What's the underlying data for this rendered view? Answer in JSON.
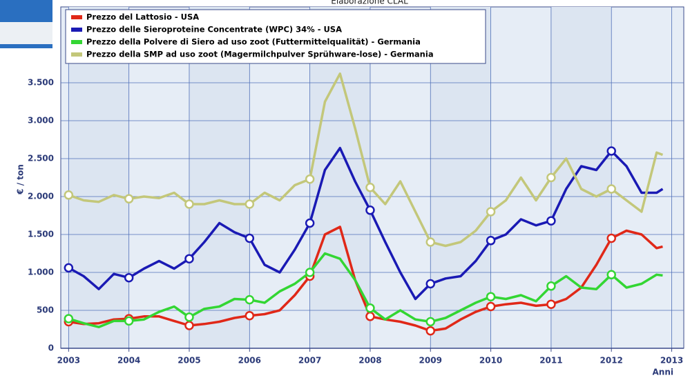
{
  "chart_data": {
    "type": "line",
    "title": "Elaborazione CLAL",
    "ylabel": "€ / ton",
    "xlabel": "Anni",
    "x": [
      2003,
      2003.25,
      2003.5,
      2003.75,
      2004,
      2004.25,
      2004.5,
      2004.75,
      2005,
      2005.25,
      2005.5,
      2005.75,
      2006,
      2006.25,
      2006.5,
      2006.75,
      2007,
      2007.25,
      2007.5,
      2007.75,
      2008,
      2008.25,
      2008.5,
      2008.75,
      2009,
      2009.25,
      2009.5,
      2009.75,
      2010,
      2010.25,
      2010.5,
      2010.75,
      2011,
      2011.25,
      2011.5,
      2011.75,
      2012,
      2012.25,
      2012.5,
      2012.75,
      2012.85
    ],
    "series": [
      {
        "name": "Prezzo del Lattosio - USA",
        "color": "#e02818",
        "values": [
          350,
          320,
          330,
          380,
          390,
          420,
          420,
          360,
          300,
          320,
          350,
          400,
          430,
          450,
          500,
          700,
          950,
          1500,
          1600,
          900,
          420,
          380,
          350,
          300,
          230,
          260,
          380,
          480,
          550,
          580,
          600,
          560,
          580,
          650,
          800,
          1100,
          1450,
          1550,
          1500,
          1320,
          1340
        ]
      },
      {
        "name": "Prezzo delle Sieroproteine Concentrate (WPC) 34% - USA",
        "color": "#1a1ab4",
        "values": [
          1060,
          950,
          780,
          980,
          930,
          1050,
          1150,
          1050,
          1180,
          1400,
          1650,
          1530,
          1450,
          1100,
          1000,
          1300,
          1650,
          2350,
          2640,
          2200,
          1820,
          1400,
          1000,
          650,
          850,
          920,
          950,
          1150,
          1420,
          1500,
          1700,
          1620,
          1680,
          2100,
          2400,
          2350,
          2600,
          2400,
          2050,
          2050,
          2100
        ]
      },
      {
        "name": "Prezzo della Polvere di Siero ad uso zoot (Futtermittelqualität) - Germania",
        "color": "#33d633",
        "values": [
          390,
          330,
          280,
          360,
          360,
          380,
          480,
          550,
          410,
          520,
          550,
          650,
          640,
          600,
          750,
          850,
          1000,
          1250,
          1180,
          900,
          530,
          380,
          500,
          380,
          350,
          400,
          500,
          600,
          680,
          650,
          700,
          620,
          820,
          950,
          800,
          780,
          970,
          800,
          850,
          970,
          960
        ]
      },
      {
        "name": "Prezzo della SMP ad uso zoot (Magermilchpulver Sprühware-lose) - Germania",
        "color": "#c3c77a",
        "values": [
          2020,
          1950,
          1930,
          2020,
          1970,
          2000,
          1980,
          2050,
          1900,
          1900,
          1950,
          1900,
          1900,
          2050,
          1950,
          2150,
          2230,
          3250,
          3620,
          2900,
          2120,
          1900,
          2200,
          1800,
          1400,
          1350,
          1400,
          1550,
          1800,
          1950,
          2250,
          1950,
          2250,
          2500,
          2100,
          2000,
          2100,
          1950,
          1800,
          2580,
          2550
        ]
      }
    ],
    "xlim": [
      2002.87,
      2013.2
    ],
    "xticks": [
      2003,
      2004,
      2005,
      2006,
      2007,
      2008,
      2009,
      2010,
      2011,
      2012,
      2013
    ],
    "ylim": [
      0,
      4500
    ],
    "yticks": [
      0,
      500,
      {
        "value": 1000,
        "label": "1.000"
      },
      {
        "value": 1500,
        "label": "1.500"
      },
      {
        "value": 2000,
        "label": "2.000"
      },
      {
        "value": 2500,
        "label": "2.500"
      },
      {
        "value": 3000,
        "label": "3.000"
      },
      {
        "value": 3500,
        "label": "3.500"
      }
    ],
    "grid": true,
    "legend": "upper left"
  }
}
